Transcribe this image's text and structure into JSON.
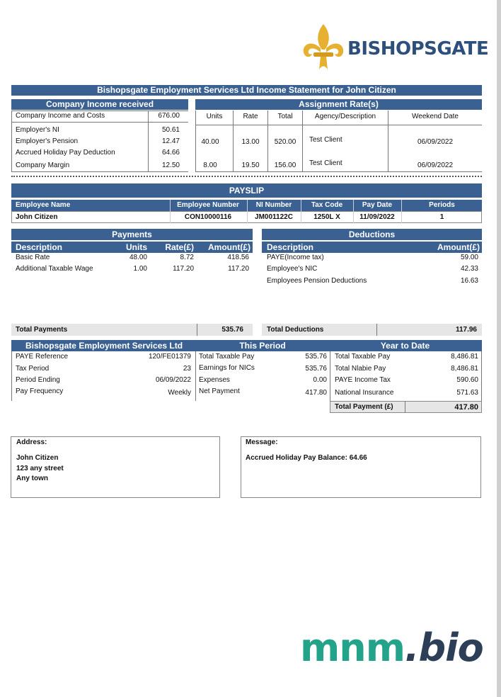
{
  "logo": {
    "name": "BISHOPSGATE"
  },
  "statement_title": "Bishopsgate Employment Services Ltd Income Statement for John Citizen",
  "company_income": {
    "header": "Company Income received",
    "rows": [
      {
        "label": "Company Income and Costs",
        "value": "676.00"
      },
      {
        "label": "Employer's NI",
        "value": "50.61"
      },
      {
        "label": "Employer's Pension",
        "value": "12.47"
      },
      {
        "label": "Accrued Holiday Pay Deduction",
        "value": "64.66"
      },
      {
        "label": "Company Margin",
        "value": "12.50"
      }
    ]
  },
  "assignment": {
    "header": "Assignment Rate(s)",
    "columns": [
      "Units",
      "Rate",
      "Total",
      "Agency/Description",
      "Weekend Date"
    ],
    "rows": [
      {
        "units": "40.00",
        "rate": "13.00",
        "total": "520.00",
        "agency": "Test Client",
        "date": "06/09/2022"
      },
      {
        "units": "8.00",
        "rate": "19.50",
        "total": "156.00",
        "agency": "Test Client",
        "date": "06/09/2022"
      }
    ]
  },
  "payslip": {
    "header": "PAYSLIP",
    "columns": [
      "Employee Name",
      "Employee Number",
      "NI Number",
      "Tax Code",
      "Pay Date",
      "Periods"
    ],
    "values": [
      "John Citizen",
      "CON10000116",
      "JM001122C",
      "1250L X",
      "11/09/2022",
      "1"
    ]
  },
  "payments": {
    "header": "Payments",
    "columns": [
      "Description",
      "Units",
      "Rate(£)",
      "Amount(£)"
    ],
    "rows": [
      {
        "desc": "Basic Rate",
        "units": "48.00",
        "rate": "8.72",
        "amount": "418.56"
      },
      {
        "desc": "Additional Taxable Wage",
        "units": "1.00",
        "rate": "117.20",
        "amount": "117.20"
      }
    ],
    "total_label": "Total Payments",
    "total_value": "535.76"
  },
  "deductions": {
    "header": "Deductions",
    "columns": [
      "Description",
      "Amount(£)"
    ],
    "rows": [
      {
        "desc": "PAYE(Income tax)",
        "amount": "59.00"
      },
      {
        "desc": "Employee's NIC",
        "amount": "42.33"
      },
      {
        "desc": "Employees Pension Deductions",
        "amount": "16.63"
      }
    ],
    "total_label": "Total Deductions",
    "total_value": "117.96"
  },
  "summary": {
    "company_header": "Bishopsgate Employment Services Ltd",
    "period_header": "This Period",
    "ytd_header": "Year to Date",
    "company_rows": [
      {
        "label": "PAYE Reference",
        "value": "120/FE01379"
      },
      {
        "label": "Tax Period",
        "value": "23"
      },
      {
        "label": "Period Ending",
        "value": "06/09/2022"
      },
      {
        "label": "Pay Frequency",
        "value": "Weekly"
      }
    ],
    "period_rows": [
      {
        "label": "Total Taxable Pay",
        "value": "535.76"
      },
      {
        "label": "Earnings for NICs",
        "value": "535.76"
      },
      {
        "label": "Expenses",
        "value": "0.00"
      },
      {
        "label": "Net Payment",
        "value": "417.80"
      }
    ],
    "ytd_rows": [
      {
        "label": "Total Taxable Pay",
        "value": "8,486.81"
      },
      {
        "label": "Total Nlabie Pay",
        "value": "8,486.81"
      },
      {
        "label": "PAYE Income Tax",
        "value": "590.60"
      },
      {
        "label": "National Insurance",
        "value": "571.63"
      }
    ],
    "total_payment_label": "Total Payment (£)",
    "total_payment_value": "417.80"
  },
  "address": {
    "label": "Address:",
    "lines": [
      "John Citizen",
      "123 any street",
      "Any town"
    ]
  },
  "message": {
    "label": "Message:",
    "text": "Accrued Holiday Pay Balance: 64.66"
  },
  "watermark": {
    "part1": "mnm",
    "part2": ".bio"
  },
  "colors": {
    "header_blue": "#3b6192",
    "brand_teal": "#22a38a",
    "brand_navy": "#2d3e57",
    "logo_gold": "#e6b030"
  }
}
